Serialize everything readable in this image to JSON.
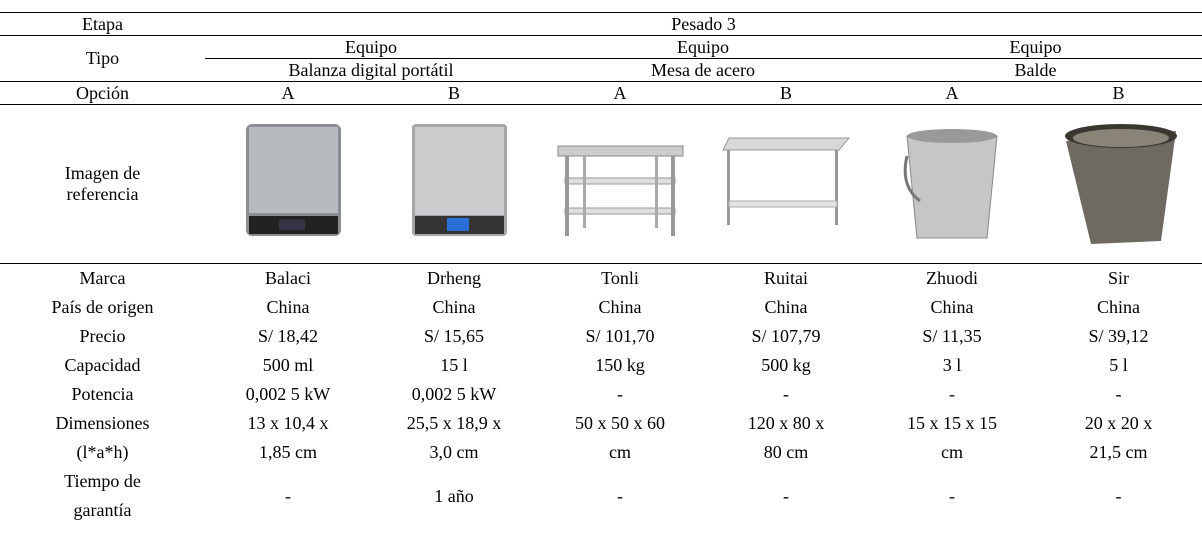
{
  "header": {
    "etapa_label": "Etapa",
    "etapa": "Pesado 3",
    "tipo_label": "Tipo",
    "groups": [
      {
        "type": "Equipo",
        "name": "Balanza digital portátil"
      },
      {
        "type": "Equipo",
        "name": "Mesa de acero"
      },
      {
        "type": "Equipo",
        "name": "Balde"
      }
    ],
    "opcion_label": "Opción",
    "options": [
      "A",
      "B",
      "A",
      "B",
      "A",
      "B"
    ],
    "image_label": [
      "Imagen de",
      "referencia"
    ]
  },
  "rows": [
    {
      "label": [
        "Marca"
      ],
      "cells": [
        [
          "Balaci"
        ],
        [
          "Drheng"
        ],
        [
          "Tonli"
        ],
        [
          "Ruitai"
        ],
        [
          "Zhuodi"
        ],
        [
          "Sir"
        ]
      ]
    },
    {
      "label": [
        "País de origen"
      ],
      "cells": [
        [
          "China"
        ],
        [
          "China"
        ],
        [
          "China"
        ],
        [
          "China"
        ],
        [
          "China"
        ],
        [
          "China"
        ]
      ]
    },
    {
      "label": [
        "Precio"
      ],
      "cells": [
        [
          "S/ 18,42"
        ],
        [
          "S/ 15,65"
        ],
        [
          "S/ 101,70"
        ],
        [
          "S/ 107,79"
        ],
        [
          "S/ 11,35"
        ],
        [
          "S/ 39,12"
        ]
      ]
    },
    {
      "label": [
        "Capacidad"
      ],
      "cells": [
        [
          "500 ml"
        ],
        [
          "15 l"
        ],
        [
          "150 kg"
        ],
        [
          "500 kg"
        ],
        [
          "3 l"
        ],
        [
          "5 l"
        ]
      ]
    },
    {
      "label": [
        "Potencia"
      ],
      "cells": [
        [
          "0,002 5 kW"
        ],
        [
          "0,002 5 kW"
        ],
        [
          "-"
        ],
        [
          "-"
        ],
        [
          "-"
        ],
        [
          "-"
        ]
      ]
    },
    {
      "label": [
        "Dimensiones",
        "(l*a*h)"
      ],
      "cells": [
        [
          "13 x 10,4 x",
          "1,85 cm"
        ],
        [
          "25,5 x 18,9 x",
          "3,0 cm"
        ],
        [
          "50 x 50 x 60",
          "cm"
        ],
        [
          "120 x 80 x",
          "80 cm"
        ],
        [
          "15 x 15 x 15",
          "cm"
        ],
        [
          "20 x 20 x",
          "21,5 cm"
        ]
      ]
    },
    {
      "label": [
        "Tiempo de",
        "garantía"
      ],
      "cells": [
        [
          "-"
        ],
        [
          "1 año"
        ],
        [
          "-"
        ],
        [
          "-"
        ],
        [
          "-"
        ],
        [
          "-"
        ]
      ]
    }
  ]
}
